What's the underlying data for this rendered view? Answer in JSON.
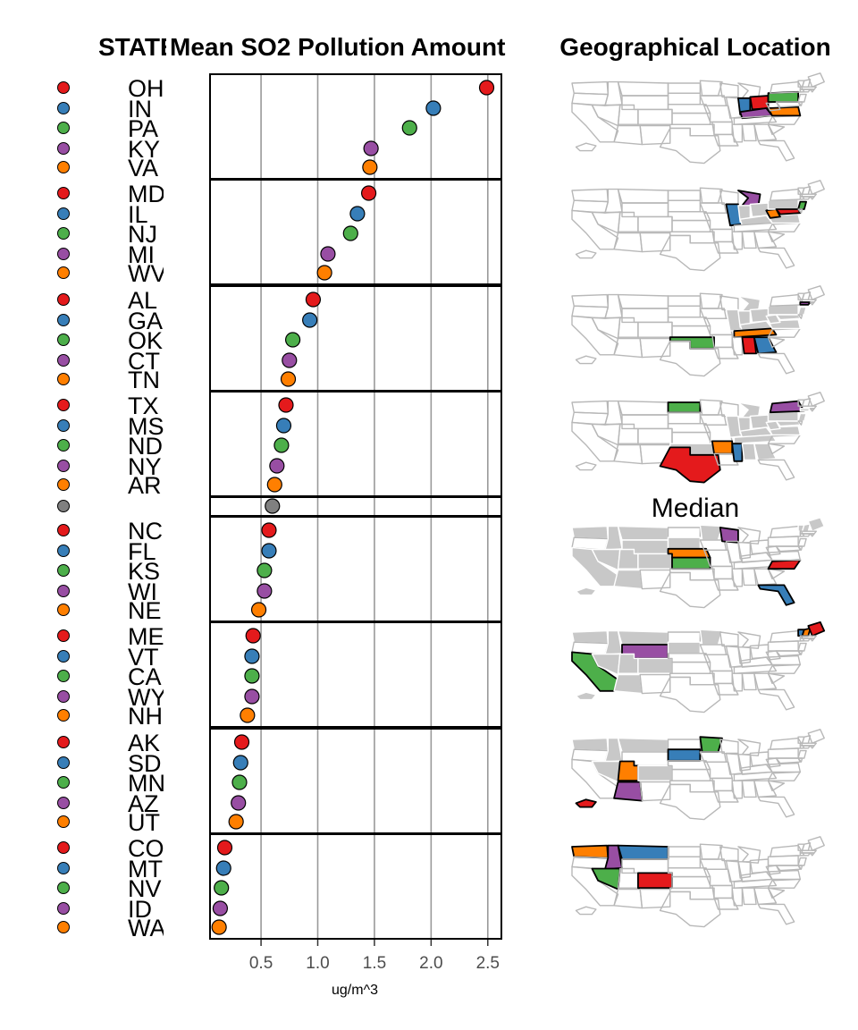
{
  "chart_data": {
    "type": "linked-micromap-dotplot",
    "headers": {
      "state": "STATE",
      "value": "Mean SO2 Pollution Amount",
      "map": "Geographical Location"
    },
    "xlabel": "ug/m^3",
    "xticks": [
      0.5,
      1.0,
      1.5,
      2.0,
      2.5
    ],
    "xlim": [
      0.05,
      2.62
    ],
    "grid": true,
    "median_label": "Median",
    "median_value": 0.6,
    "colors": {
      "red": "#e41a1c",
      "blue": "#377eb8",
      "green": "#4daf4a",
      "purple": "#984ea3",
      "orange": "#ff7f00",
      "median": "#808080",
      "map_outline": "#b8b8b8",
      "map_gray": "#c8c8c8"
    },
    "groups": [
      {
        "states": [
          "OH",
          "IN",
          "PA",
          "KY",
          "VA"
        ],
        "values": [
          2.49,
          2.02,
          1.81,
          1.47,
          1.46
        ]
      },
      {
        "states": [
          "MD",
          "IL",
          "NJ",
          "MI",
          "WV"
        ],
        "values": [
          1.45,
          1.35,
          1.29,
          1.09,
          1.06
        ]
      },
      {
        "states": [
          "AL",
          "GA",
          "OK",
          "CT",
          "TN"
        ],
        "values": [
          0.96,
          0.93,
          0.78,
          0.75,
          0.74
        ]
      },
      {
        "states": [
          "TX",
          "MS",
          "ND",
          "NY",
          "AR"
        ],
        "values": [
          0.72,
          0.7,
          0.68,
          0.64,
          0.62
        ]
      },
      {
        "states": [
          "NC",
          "FL",
          "KS",
          "WI",
          "NE"
        ],
        "values": [
          0.57,
          0.57,
          0.53,
          0.53,
          0.48
        ]
      },
      {
        "states": [
          "ME",
          "VT",
          "CA",
          "WY",
          "NH"
        ],
        "values": [
          0.43,
          0.42,
          0.42,
          0.42,
          0.38
        ]
      },
      {
        "states": [
          "AK",
          "SD",
          "MN",
          "AZ",
          "UT"
        ],
        "values": [
          0.33,
          0.32,
          0.31,
          0.3,
          0.28
        ]
      },
      {
        "states": [
          "CO",
          "MT",
          "NV",
          "ID",
          "WA"
        ],
        "values": [
          0.18,
          0.17,
          0.15,
          0.14,
          0.13
        ]
      }
    ]
  }
}
